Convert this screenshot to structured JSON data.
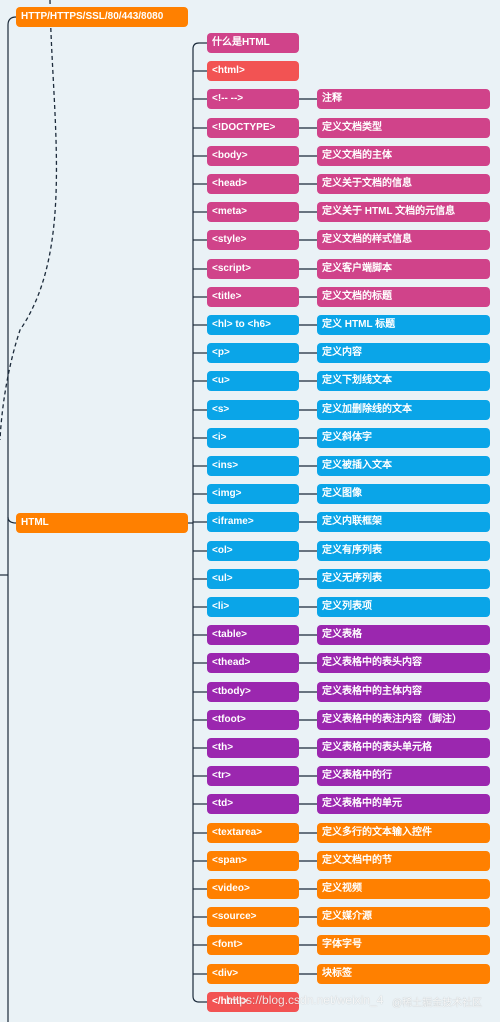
{
  "colors": {
    "orange": "#ff8000",
    "red": "#f25353",
    "magenta": "#d0438a",
    "blue": "#0aa5e8",
    "purple": "#9b27af",
    "connector": "#1b2a3a"
  },
  "roots": [
    {
      "label": "HTTP/HTTPS/SSL/80/443/8080",
      "color": "orange"
    },
    {
      "label": "HTML",
      "color": "orange"
    }
  ],
  "items": [
    {
      "tag": "什么是HTML",
      "desc": "",
      "color": "magenta"
    },
    {
      "tag": "<html>",
      "desc": "",
      "color": "red"
    },
    {
      "tag": "<!-- -->",
      "desc": "注释",
      "color": "magenta"
    },
    {
      "tag": "<!DOCTYPE>",
      "desc": "定义文档类型",
      "color": "magenta"
    },
    {
      "tag": "<body>",
      "desc": "定义文档的主体",
      "color": "magenta"
    },
    {
      "tag": "<head>",
      "desc": "定义关于文档的信息",
      "color": "magenta"
    },
    {
      "tag": "<meta>",
      "desc": "定义关于 HTML 文档的元信息",
      "color": "magenta"
    },
    {
      "tag": "<style>",
      "desc": "定义文档的样式信息",
      "color": "magenta"
    },
    {
      "tag": "<script>",
      "desc": "定义客户端脚本",
      "color": "magenta"
    },
    {
      "tag": "<title>",
      "desc": "定义文档的标题",
      "color": "magenta"
    },
    {
      "tag": "<hl> to <h6>",
      "desc": "定义 HTML 标题",
      "color": "blue"
    },
    {
      "tag": "<p>",
      "desc": "定义内容",
      "color": "blue"
    },
    {
      "tag": "<u>",
      "desc": "定义下划线文本",
      "color": "blue"
    },
    {
      "tag": "<s>",
      "desc": "定义加删除线的文本",
      "color": "blue"
    },
    {
      "tag": "<i>",
      "desc": "定义斜体字",
      "color": "blue"
    },
    {
      "tag": "<ins>",
      "desc": "定义被插入文本",
      "color": "blue"
    },
    {
      "tag": "<img>",
      "desc": "定义图像",
      "color": "blue"
    },
    {
      "tag": "<iframe>",
      "desc": "定义内联框架",
      "color": "blue"
    },
    {
      "tag": "<ol>",
      "desc": "定义有序列表",
      "color": "blue"
    },
    {
      "tag": "<ul>",
      "desc": "定义无序列表",
      "color": "blue"
    },
    {
      "tag": "<li>",
      "desc": "定义列表项",
      "color": "blue"
    },
    {
      "tag": "<table>",
      "desc": "定义表格",
      "color": "purple"
    },
    {
      "tag": "<thead>",
      "desc": "定义表格中的表头内容",
      "color": "purple"
    },
    {
      "tag": "<tbody>",
      "desc": "定义表格中的主体内容",
      "color": "purple"
    },
    {
      "tag": "<tfoot>",
      "desc": "定义表格中的表注内容（脚注）",
      "color": "purple"
    },
    {
      "tag": "<th>",
      "desc": "定义表格中的表头单元格",
      "color": "purple"
    },
    {
      "tag": "<tr>",
      "desc": "定义表格中的行",
      "color": "purple"
    },
    {
      "tag": "<td>",
      "desc": "定义表格中的单元",
      "color": "purple"
    },
    {
      "tag": "<textarea>",
      "desc": "定义多行的文本输入控件",
      "color": "orange"
    },
    {
      "tag": "<span>",
      "desc": "定义文档中的节",
      "color": "orange"
    },
    {
      "tag": "<video>",
      "desc": "定义视频",
      "color": "orange"
    },
    {
      "tag": "<source>",
      "desc": "定义媒介源",
      "color": "orange"
    },
    {
      "tag": "<font>",
      "desc": "字体字号",
      "color": "orange"
    },
    {
      "tag": "<div>",
      "desc": "块标签",
      "color": "orange"
    },
    {
      "tag": "</html>",
      "desc": "",
      "color": "red"
    }
  ],
  "watermark": "https://blog.csdn.net/weixin_4",
  "watermark2": "@稀土掘金技术社区"
}
